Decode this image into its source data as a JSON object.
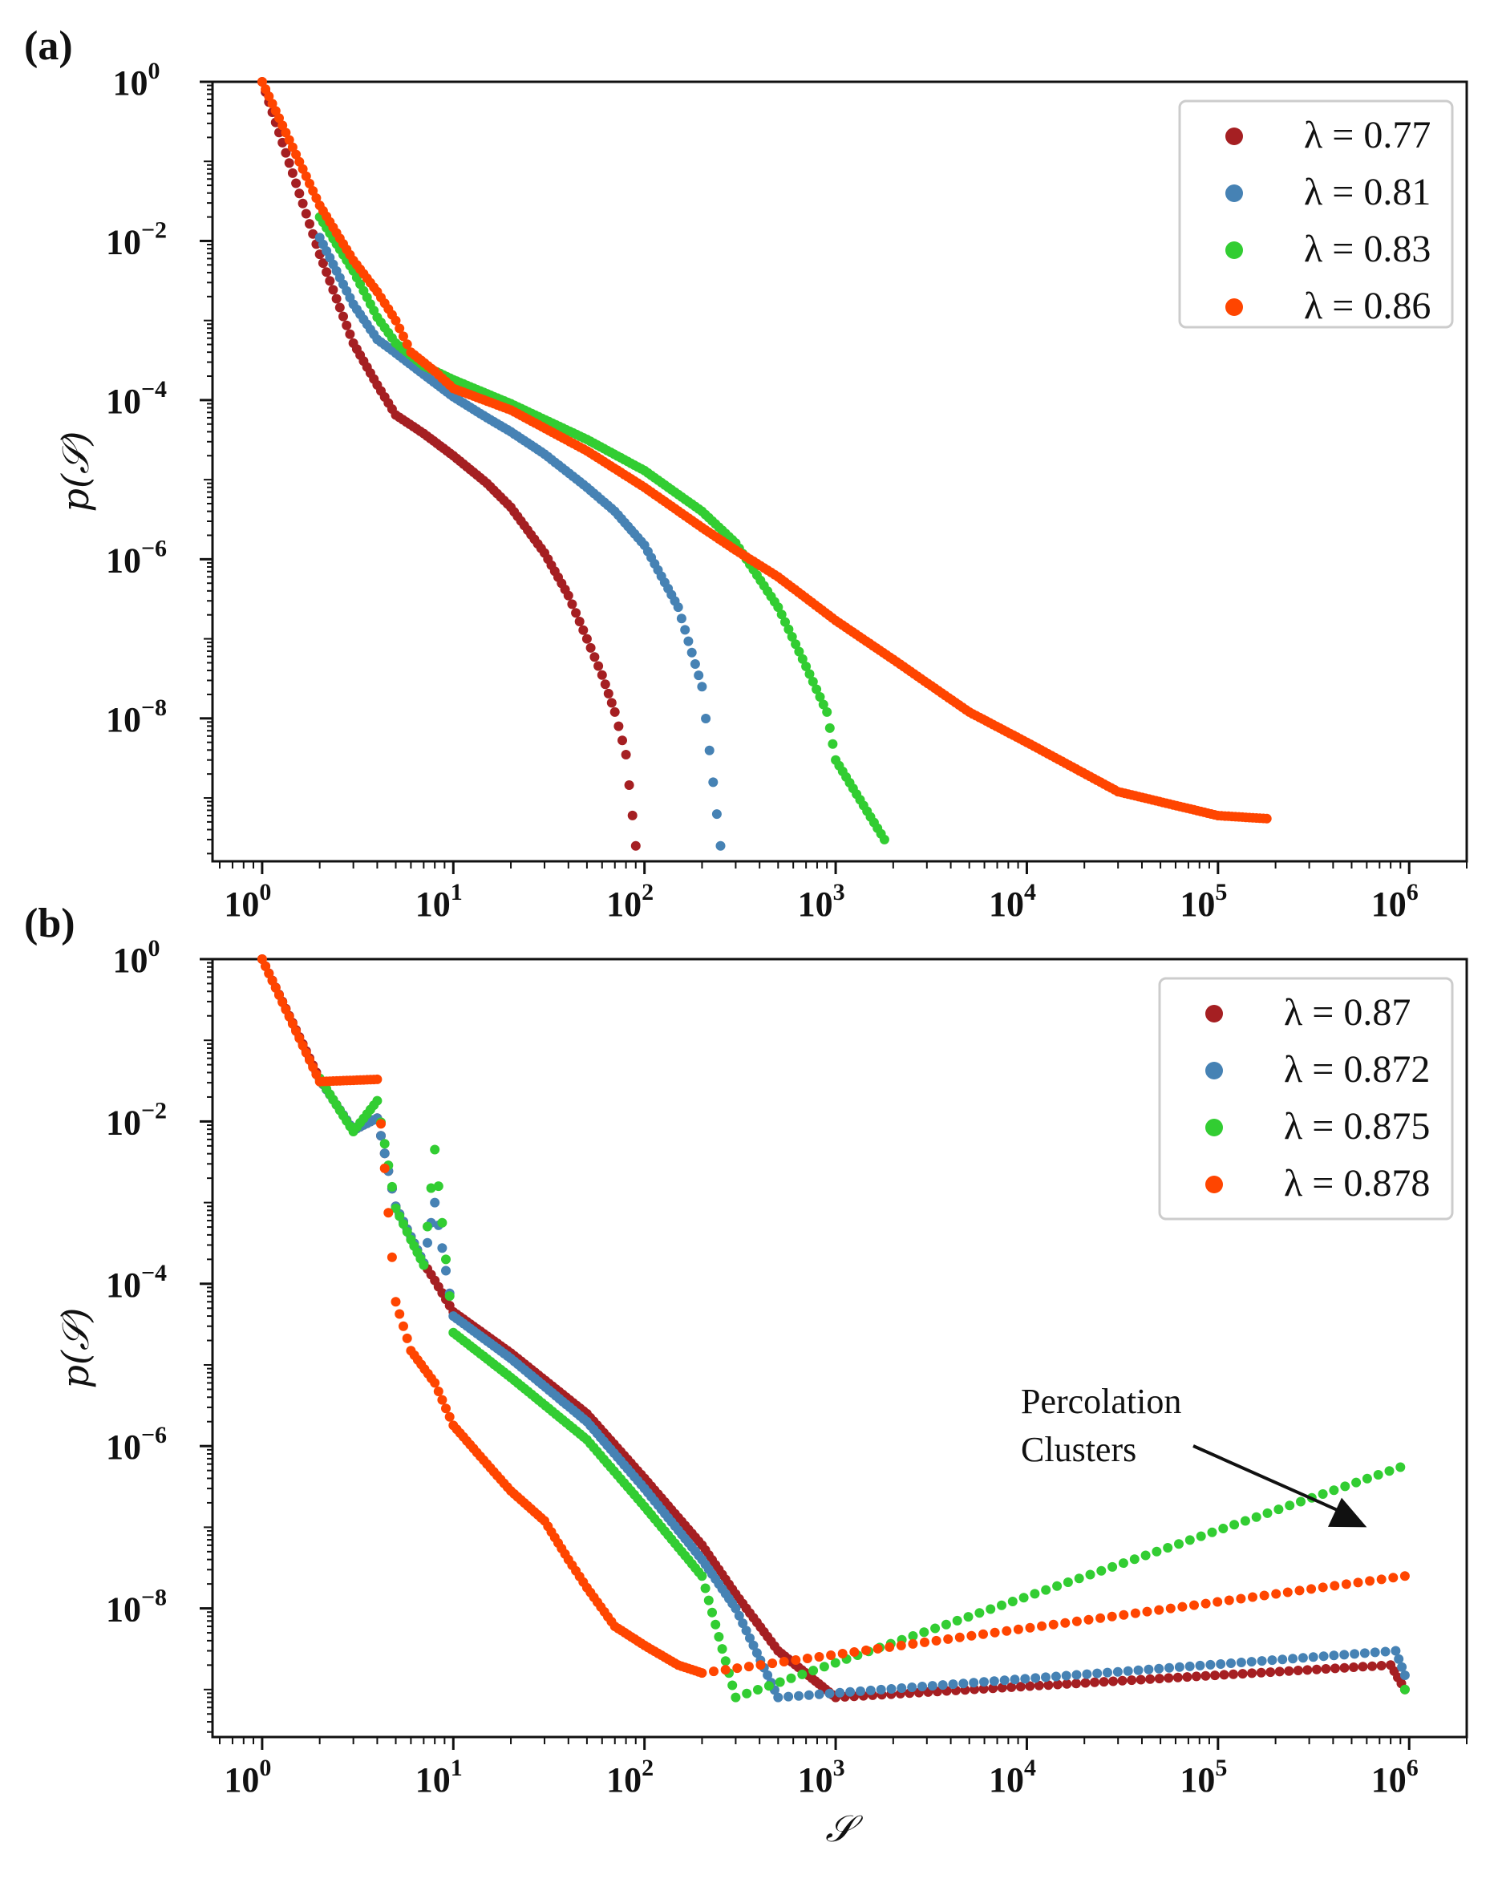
{
  "chart_data": [
    {
      "panel_label": "(a)",
      "type": "scatter",
      "xscale": "log",
      "yscale": "log",
      "xlim": [
        0.55,
        2000000
      ],
      "ylim": [
        1.6e-10,
        1.0
      ],
      "xticks": [
        1,
        10,
        100,
        1000,
        10000,
        100000,
        1000000
      ],
      "xtick_labels": [
        {
          "base": "10",
          "exp": "0"
        },
        {
          "base": "10",
          "exp": "1"
        },
        {
          "base": "10",
          "exp": "2"
        },
        {
          "base": "10",
          "exp": "3"
        },
        {
          "base": "10",
          "exp": "4"
        },
        {
          "base": "10",
          "exp": "5"
        },
        {
          "base": "10",
          "exp": "6"
        }
      ],
      "yticks": [
        1,
        0.01,
        0.0001,
        1e-06,
        1e-08
      ],
      "ytick_labels": [
        {
          "base": "10",
          "exp": "0"
        },
        {
          "base": "10",
          "exp": "−2"
        },
        {
          "base": "10",
          "exp": "−4"
        },
        {
          "base": "10",
          "exp": "−6"
        },
        {
          "base": "10",
          "exp": "−8"
        }
      ],
      "xlabel": "",
      "ylabel": "p(𝒮)",
      "legend_position": "top-right",
      "series": [
        {
          "name": "λ = 0.77",
          "color": "#a51f22",
          "x": [
            1,
            2,
            3,
            4,
            5,
            7,
            10,
            15,
            20,
            30,
            40,
            50,
            60,
            70,
            80,
            90
          ],
          "y": [
            1.0,
            0.0068,
            0.00052,
            0.000155,
            6.5e-05,
            3.8e-05,
            2e-05,
            9e-06,
            4.5e-06,
            1.2e-06,
            3.5e-07,
            1e-07,
            3.5e-08,
            1.2e-08,
            3.5e-09,
            2.5e-10
          ]
        },
        {
          "name": "λ = 0.81",
          "color": "#4682b4",
          "x": [
            2,
            3,
            4,
            5,
            7,
            10,
            15,
            20,
            30,
            50,
            70,
            100,
            150,
            200,
            250
          ],
          "y": [
            0.011,
            0.0016,
            0.00058,
            0.00039,
            0.00021,
            0.00011,
            6e-05,
            4e-05,
            2.1e-05,
            8e-06,
            4e-06,
            1.5e-06,
            2.5e-07,
            2.5e-08,
            2.5e-10
          ]
        },
        {
          "name": "λ = 0.83",
          "color": "#32cd32",
          "x": [
            2,
            3,
            4,
            5,
            7,
            10,
            20,
            50,
            100,
            200,
            300,
            500,
            700,
            900,
            1000,
            1800
          ],
          "y": [
            0.02,
            0.0042,
            0.0011,
            0.00052,
            0.00027,
            0.00018,
            9e-05,
            3.2e-05,
            1.3e-05,
            4e-06,
            1.6e-06,
            2.5e-07,
            4.5e-08,
            1.2e-08,
            3e-09,
            3e-10
          ]
        },
        {
          "name": "λ = 0.86",
          "color": "#ff4500",
          "x": [
            1,
            2,
            3,
            4,
            5,
            6,
            8,
            10,
            20,
            50,
            100,
            200,
            300,
            500,
            1000,
            2000,
            5000,
            10000,
            30000,
            100000,
            180000
          ],
          "y": [
            1.0,
            0.028,
            0.0057,
            0.0023,
            0.001,
            0.0004,
            0.00023,
            0.00014,
            7.5e-05,
            2.3e-05,
            8e-06,
            2.5e-06,
            1.3e-06,
            6e-07,
            1.7e-07,
            5.5e-08,
            1.2e-08,
            5e-09,
            1.2e-09,
            6e-10,
            5.5e-10
          ]
        }
      ]
    },
    {
      "panel_label": "(b)",
      "type": "scatter",
      "xscale": "log",
      "yscale": "log",
      "xlim": [
        0.55,
        2000000
      ],
      "ylim": [
        2.6e-10,
        1.0
      ],
      "xticks": [
        1,
        10,
        100,
        1000,
        10000,
        100000,
        1000000
      ],
      "xtick_labels": [
        {
          "base": "10",
          "exp": "0"
        },
        {
          "base": "10",
          "exp": "1"
        },
        {
          "base": "10",
          "exp": "2"
        },
        {
          "base": "10",
          "exp": "3"
        },
        {
          "base": "10",
          "exp": "4"
        },
        {
          "base": "10",
          "exp": "5"
        },
        {
          "base": "10",
          "exp": "6"
        }
      ],
      "yticks": [
        1,
        0.01,
        0.0001,
        1e-06,
        1e-08
      ],
      "ytick_labels": [
        {
          "base": "10",
          "exp": "0"
        },
        {
          "base": "10",
          "exp": "−2"
        },
        {
          "base": "10",
          "exp": "−4"
        },
        {
          "base": "10",
          "exp": "−6"
        },
        {
          "base": "10",
          "exp": "−8"
        }
      ],
      "xlabel": "𝒮",
      "ylabel": "p(𝒮)",
      "legend_position": "top-right",
      "annotation": {
        "lines": [
          "Percolation",
          "Clusters"
        ],
        "points_to": {
          "x": 600000,
          "y": 1e-07
        }
      },
      "series": [
        {
          "name": "λ = 0.87",
          "color": "#a51f22",
          "x": [
            1,
            2,
            3,
            4,
            5,
            6,
            7,
            8,
            10,
            20,
            50,
            100,
            200,
            300,
            500,
            1000,
            800000,
            950000
          ],
          "y": [
            1.0,
            0.033,
            0.0078,
            0.011,
            0.0009,
            0.00038,
            0.00018,
            0.00011,
            4.5e-05,
            1.4e-05,
            2.5e-06,
            4e-07,
            6e-08,
            1.5e-08,
            3e-09,
            8e-10,
            2e-09,
            1e-09
          ]
        },
        {
          "name": "λ = 0.872",
          "color": "#4682b4",
          "x": [
            2,
            3,
            4,
            5,
            6,
            7,
            8,
            10,
            20,
            50,
            100,
            200,
            300,
            500,
            850000,
            950000
          ],
          "y": [
            0.033,
            0.0078,
            0.011,
            0.0009,
            0.00038,
            0.00018,
            0.001,
            4e-05,
            1.2e-05,
            2e-06,
            3e-07,
            4e-08,
            1e-08,
            8e-10,
            3e-09,
            1.5e-09
          ]
        },
        {
          "name": "λ = 0.875",
          "color": "#32cd32",
          "x": [
            2,
            3,
            4,
            5,
            6,
            7,
            8,
            10,
            20,
            50,
            100,
            200,
            300,
            900000,
            950000
          ],
          "y": [
            0.034,
            0.0075,
            0.018,
            0.00085,
            0.00035,
            0.00017,
            0.0045,
            2.5e-05,
            7e-06,
            1.2e-06,
            1.8e-07,
            2.5e-08,
            8e-10,
            5.5e-07,
            1e-09
          ]
        },
        {
          "name": "λ = 0.878",
          "color": "#ff4500",
          "x": [
            1,
            2,
            4,
            5,
            6,
            8,
            10,
            15,
            20,
            30,
            40,
            50,
            70,
            100,
            150,
            200,
            950000
          ],
          "y": [
            1.0,
            0.031,
            0.033,
            6e-05,
            1.5e-05,
            6e-06,
            1.8e-06,
            6e-07,
            2.8e-07,
            1.2e-07,
            4e-08,
            1.8e-08,
            6e-09,
            3.5e-09,
            2e-09,
            1.6e-09,
            2.5e-08
          ]
        }
      ]
    }
  ]
}
